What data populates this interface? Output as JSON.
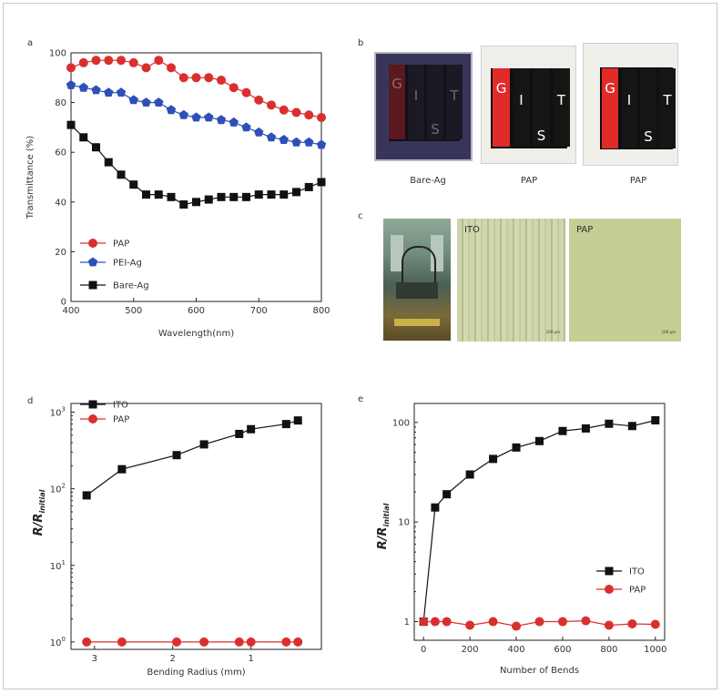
{
  "panel_letters": {
    "a": "a",
    "b": "b",
    "c": "c",
    "d": "d",
    "e": "e"
  },
  "photos_b": {
    "captions": [
      "Bare-Ag",
      "PAP",
      "PAP"
    ],
    "letters": [
      "G",
      "I",
      "S",
      "T"
    ]
  },
  "photos_c": {
    "micro_labels": [
      "ITO",
      "PAP"
    ],
    "scale_text": "100 μm"
  },
  "colors": {
    "pap": "#d9302e",
    "pei": "#2f4fb8",
    "bare": "#111111",
    "ito": "#111111"
  },
  "chart_data": [
    {
      "id": "a",
      "type": "line",
      "xlabel": "Wavelength(nm)",
      "ylabel": "Transmittance (%)",
      "xlim": [
        400,
        800
      ],
      "ylim": [
        0,
        100
      ],
      "xticks": [
        "400",
        "500",
        "600",
        "700",
        "800"
      ],
      "yticks": [
        "0",
        "20",
        "40",
        "60",
        "80",
        "100"
      ],
      "legend": "bottom-left",
      "series": [
        {
          "name": "PAP",
          "marker": "circle",
          "color": "#d9302e",
          "x": [
            400,
            420,
            440,
            460,
            480,
            500,
            520,
            540,
            560,
            580,
            600,
            620,
            640,
            660,
            680,
            700,
            720,
            740,
            760,
            780,
            800
          ],
          "y": [
            94,
            96,
            97,
            97,
            97,
            96,
            94,
            97,
            94,
            90,
            90,
            90,
            89,
            86,
            84,
            81,
            79,
            77,
            76,
            75,
            74
          ]
        },
        {
          "name": "PEI-Ag",
          "marker": "pentagon",
          "color": "#2f4fb8",
          "x": [
            400,
            420,
            440,
            460,
            480,
            500,
            520,
            540,
            560,
            580,
            600,
            620,
            640,
            660,
            680,
            700,
            720,
            740,
            760,
            780,
            800
          ],
          "y": [
            87,
            86,
            85,
            84,
            84,
            81,
            80,
            80,
            77,
            75,
            74,
            74,
            73,
            72,
            70,
            68,
            66,
            65,
            64,
            64,
            63
          ]
        },
        {
          "name": "Bare-Ag",
          "marker": "square",
          "color": "#111111",
          "x": [
            400,
            420,
            440,
            460,
            480,
            500,
            520,
            540,
            560,
            580,
            600,
            620,
            640,
            660,
            680,
            700,
            720,
            740,
            760,
            780,
            800
          ],
          "y": [
            71,
            66,
            62,
            56,
            51,
            47,
            43,
            43,
            42,
            39,
            40,
            41,
            42,
            42,
            42,
            43,
            43,
            43,
            44,
            46,
            48
          ]
        }
      ]
    },
    {
      "id": "d",
      "type": "line",
      "xlabel": "Bending Radius (mm)",
      "ylabel_main": "R/R",
      "ylabel_sub": "initial",
      "yscale": "log",
      "xlim": [
        3.3,
        0.1
      ],
      "ylim": [
        0.8,
        1300
      ],
      "xticks": [
        "3",
        "2",
        "1"
      ],
      "yticks_base": "10",
      "yticks_exp": [
        "0",
        "1",
        "2",
        "3"
      ],
      "legend": "top-left",
      "series": [
        {
          "name": "ITO",
          "marker": "square",
          "color": "#111111",
          "x": [
            3.1,
            2.65,
            1.95,
            1.6,
            1.15,
            1.0,
            0.55,
            0.4
          ],
          "y": [
            82,
            180,
            275,
            380,
            520,
            600,
            700,
            780
          ]
        },
        {
          "name": "PAP",
          "marker": "circle",
          "color": "#d9302e",
          "x": [
            3.1,
            2.65,
            1.95,
            1.6,
            1.15,
            1.0,
            0.55,
            0.4
          ],
          "y": [
            1,
            1,
            1,
            1,
            1,
            1,
            1,
            1
          ]
        }
      ]
    },
    {
      "id": "e",
      "type": "line",
      "xlabel": "Number of Bends",
      "ylabel_main": "R/R",
      "ylabel_sub": "initial",
      "yscale": "log",
      "xlim": [
        -40,
        1040
      ],
      "ylim": [
        0.65,
        155
      ],
      "xticks": [
        "0",
        "200",
        "400",
        "600",
        "800",
        "1000"
      ],
      "yticks": [
        "1",
        "10",
        "100"
      ],
      "legend": "bottom-right",
      "series": [
        {
          "name": "ITO",
          "marker": "square",
          "color": "#111111",
          "x": [
            0,
            50,
            100,
            200,
            300,
            400,
            500,
            600,
            700,
            800,
            900,
            1000
          ],
          "y": [
            1,
            14,
            19,
            30,
            43,
            56,
            65,
            82,
            87,
            97,
            92,
            105
          ]
        },
        {
          "name": "PAP",
          "marker": "circle",
          "color": "#d9302e",
          "x": [
            0,
            50,
            100,
            200,
            300,
            400,
            500,
            600,
            700,
            800,
            900,
            1000
          ],
          "y": [
            1.0,
            1.0,
            1.0,
            0.92,
            1.0,
            0.9,
            1.0,
            1.0,
            1.02,
            0.92,
            0.95,
            0.94
          ]
        }
      ]
    }
  ]
}
